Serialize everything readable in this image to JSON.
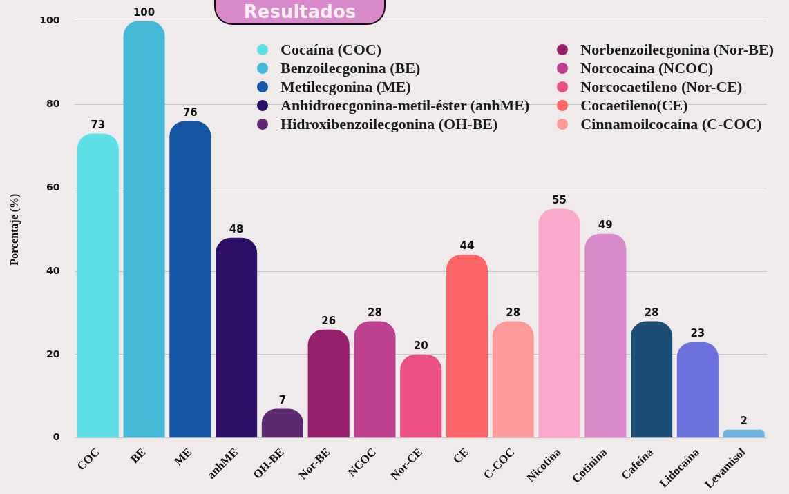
{
  "chart_data": {
    "type": "bar",
    "title": "Resultados",
    "ylabel": "Porcentaje (%)",
    "categories": [
      "COC",
      "BE",
      "ME",
      "anhME",
      "OH-BE",
      "Nor-BE",
      "NCOC",
      "Nor-CE",
      "CE",
      "C-COC",
      "Nicotina",
      "Cotinina",
      "Cafeína",
      "Lidocaína",
      "Levamisol"
    ],
    "series": [
      {
        "name": "Cocaína (COC)",
        "color": "#5ee0e6",
        "values": [
          73,
          null,
          null,
          null,
          null,
          null,
          null,
          null,
          null,
          null,
          null,
          null,
          null,
          null,
          null
        ]
      },
      {
        "name": "Benzoilecgonina (BE)",
        "color": "#45b8d8",
        "values": [
          null,
          100,
          null,
          null,
          null,
          null,
          null,
          null,
          null,
          null,
          null,
          null,
          null,
          null,
          null
        ]
      },
      {
        "name": "Metilecgonina (ME)",
        "color": "#1455a4",
        "values": [
          null,
          null,
          76,
          null,
          null,
          null,
          null,
          null,
          null,
          null,
          null,
          null,
          null,
          null,
          null
        ]
      },
      {
        "name": "Anhidroecgonina-metil-éster (anhME)",
        "color": "#2d0e66",
        "values": [
          null,
          null,
          null,
          48,
          null,
          null,
          null,
          null,
          null,
          null,
          null,
          null,
          null,
          null,
          null
        ]
      },
      {
        "name": "Hidroxibenzoilecgonina (OH-BE)",
        "color": "#5c2a70",
        "values": [
          null,
          null,
          null,
          null,
          7,
          null,
          null,
          null,
          null,
          null,
          null,
          null,
          null,
          null,
          null
        ]
      },
      {
        "name": "Norbenzoilecgonina (Nor-BE)",
        "color": "#961f6c",
        "values": [
          null,
          null,
          null,
          null,
          null,
          26,
          null,
          null,
          null,
          null,
          null,
          null,
          null,
          null,
          null
        ]
      },
      {
        "name": "Norcocaína (NCOC)",
        "color": "#bd418e",
        "values": [
          null,
          null,
          null,
          null,
          null,
          null,
          28,
          null,
          null,
          null,
          null,
          null,
          null,
          null,
          null
        ]
      },
      {
        "name": "Norcocaetileno (Nor-CE)",
        "color": "#ec4f84",
        "values": [
          null,
          null,
          null,
          null,
          null,
          null,
          null,
          20,
          null,
          null,
          null,
          null,
          null,
          null,
          null
        ]
      },
      {
        "name": "Cocaetileno(CE)",
        "color": "#ff6468",
        "values": [
          null,
          null,
          null,
          null,
          null,
          null,
          null,
          null,
          44,
          null,
          null,
          null,
          null,
          null,
          null
        ]
      },
      {
        "name": "Cinnamoilcocaína (C-COC)",
        "color": "#ff9a9a",
        "values": [
          null,
          null,
          null,
          null,
          null,
          null,
          null,
          null,
          null,
          28,
          null,
          null,
          null,
          null,
          null
        ]
      },
      {
        "color": "#f9a8cb",
        "values": [
          null,
          null,
          null,
          null,
          null,
          null,
          null,
          null,
          null,
          null,
          55,
          null,
          null,
          null,
          null
        ]
      },
      {
        "color": "#d98acb",
        "values": [
          null,
          null,
          null,
          null,
          null,
          null,
          null,
          null,
          null,
          null,
          null,
          49,
          null,
          null,
          null
        ]
      },
      {
        "color": "#1c4d74",
        "values": [
          null,
          null,
          null,
          null,
          null,
          null,
          null,
          null,
          null,
          null,
          null,
          null,
          28,
          null,
          null
        ]
      },
      {
        "color": "#6c72dd",
        "values": [
          null,
          null,
          null,
          null,
          null,
          null,
          null,
          null,
          null,
          null,
          null,
          null,
          null,
          23,
          null
        ]
      },
      {
        "color": "#6cb4e0",
        "values": [
          null,
          null,
          null,
          null,
          null,
          null,
          null,
          null,
          null,
          null,
          null,
          null,
          null,
          null,
          2
        ]
      }
    ],
    "ylim": [
      0,
      100
    ],
    "yticks": [
      0,
      20,
      40,
      60,
      80,
      100
    ],
    "grid": "y",
    "legend": "top right",
    "data_labels": true
  }
}
